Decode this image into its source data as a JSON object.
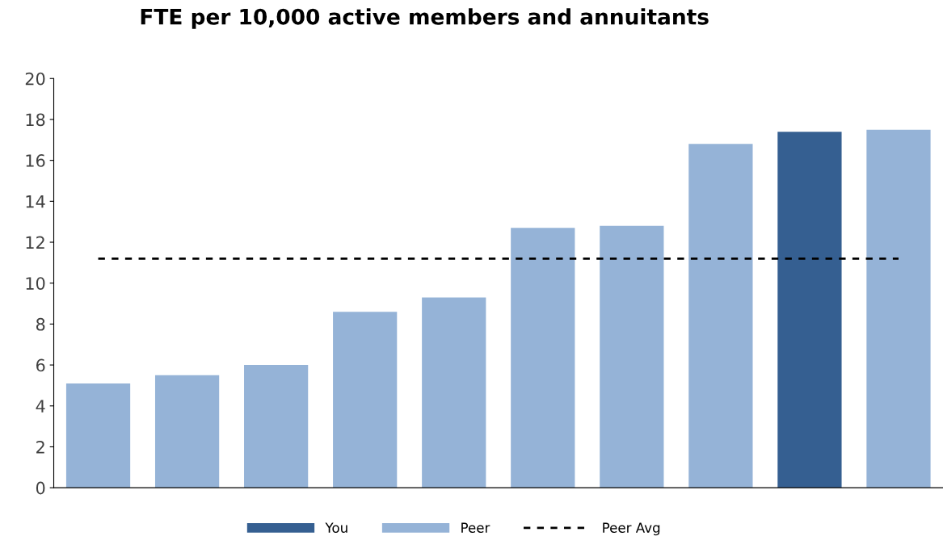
{
  "chart_data": {
    "type": "bar",
    "title": "FTE per 10,000 active members and annuitants",
    "categories": [
      null,
      null,
      null,
      null,
      null,
      null,
      null,
      null,
      null,
      null
    ],
    "series": [
      {
        "name": "You",
        "color": "#355f91",
        "values": [
          null,
          null,
          null,
          null,
          null,
          null,
          null,
          null,
          17.4,
          null
        ]
      },
      {
        "name": "Peer",
        "color": "#95b3d7",
        "values": [
          5.1,
          5.5,
          6.0,
          8.6,
          9.3,
          12.7,
          12.8,
          16.8,
          null,
          17.5
        ]
      }
    ],
    "ref_lines": [
      {
        "axis": "y",
        "value": 11.2,
        "label": "Peer Avg",
        "color": "#000000",
        "line_style": "dashed"
      }
    ],
    "ylim": [
      0,
      20
    ],
    "yticks": [
      0,
      2,
      4,
      6,
      8,
      10,
      12,
      14,
      16,
      18,
      20
    ],
    "stacked": true,
    "tick_labels": "y",
    "grid": false,
    "legend": "bottom"
  }
}
